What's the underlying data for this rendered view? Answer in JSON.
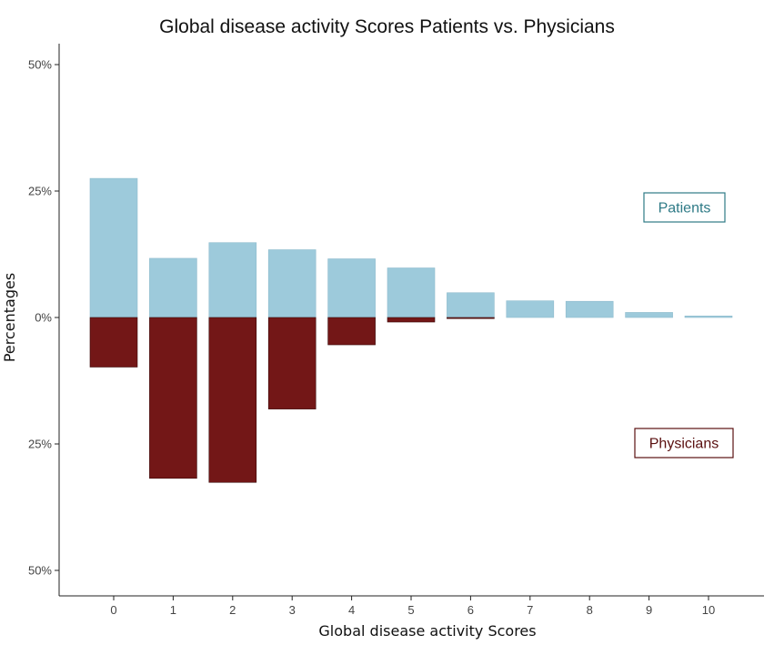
{
  "chart_data": {
    "type": "bar",
    "title": "Global disease activity Scores Patients vs. Physicians",
    "xlabel": "Global disease activity Scores",
    "ylabel": "Percentages",
    "categories": [
      "0",
      "1",
      "2",
      "3",
      "4",
      "5",
      "6",
      "7",
      "8",
      "9",
      "10"
    ],
    "ylim": [
      -50,
      50
    ],
    "y_ticks": [
      {
        "value": 50,
        "label": "50%"
      },
      {
        "value": 25,
        "label": "25%"
      },
      {
        "value": 0,
        "label": "0%"
      },
      {
        "value": -25,
        "label": "25%"
      },
      {
        "value": -50,
        "label": "50%"
      }
    ],
    "grid": false,
    "legend_position": "right",
    "series": [
      {
        "name": "Patients",
        "color": "#9dcadb",
        "values": [
          27.5,
          11.7,
          14.8,
          13.4,
          11.6,
          9.8,
          4.9,
          3.3,
          3.2,
          1.0,
          0.3
        ]
      },
      {
        "name": "Physicians",
        "color": "#731717",
        "values": [
          9.8,
          31.8,
          32.6,
          18.1,
          5.4,
          0.9,
          0.2,
          0,
          0,
          0,
          0
        ]
      }
    ]
  }
}
